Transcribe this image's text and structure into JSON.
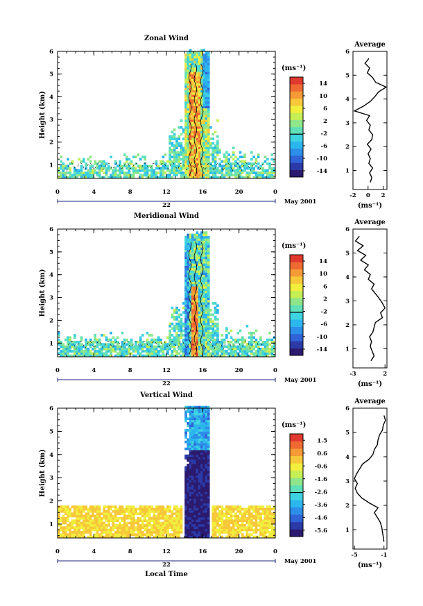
{
  "chart_data": [
    {
      "type": "heatmap",
      "title": "Zonal Wind",
      "xlabel": "",
      "ylabel": "Height (km)",
      "xticks": [
        "0",
        "4",
        "8",
        "12",
        "16",
        "20",
        "0"
      ],
      "yticks": [
        "1",
        "2",
        "3",
        "4",
        "5",
        "6"
      ],
      "xlim": [
        0,
        24
      ],
      "ylim": [
        0.4,
        6.0
      ],
      "date_label": "22",
      "month_label": "May 2001",
      "colorbar": {
        "unit": "(ms⁻¹)",
        "ticks": [
          "14",
          "10",
          "6",
          "2",
          "-2",
          "-6",
          "-10",
          "-14"
        ],
        "range": [
          -16,
          16
        ]
      },
      "profile": {
        "title": "Average",
        "xlabel": "(ms⁻¹)",
        "xticks": [
          "-2",
          "0",
          "2"
        ],
        "xlim": [
          -2,
          2.5
        ],
        "y": [
          0.5,
          0.7,
          0.9,
          1.1,
          1.3,
          1.5,
          1.7,
          1.9,
          2.1,
          2.3,
          2.5,
          2.7,
          2.9,
          3.1,
          3.3,
          3.5,
          3.7,
          3.9,
          4.1,
          4.3,
          4.5,
          4.7,
          4.9,
          5.1,
          5.3,
          5.5,
          5.7
        ],
        "x": [
          0.3,
          0.5,
          0.2,
          0.6,
          0.1,
          0.3,
          0.0,
          0.4,
          -0.1,
          0.5,
          0.6,
          0.1,
          0.3,
          -0.2,
          0.2,
          -1.8,
          -0.6,
          0.3,
          0.9,
          1.4,
          2.4,
          1.0,
          0.6,
          -0.1,
          0.2,
          -0.4,
          0.1
        ]
      }
    },
    {
      "type": "heatmap",
      "title": "Meridional Wind",
      "xlabel": "",
      "ylabel": "Height (km)",
      "xticks": [
        "0",
        "4",
        "8",
        "12",
        "16",
        "20",
        "0"
      ],
      "yticks": [
        "1",
        "2",
        "3",
        "4",
        "5",
        "6"
      ],
      "xlim": [
        0,
        24
      ],
      "ylim": [
        0.4,
        6.0
      ],
      "date_label": "22",
      "month_label": "May 2001",
      "colorbar": {
        "unit": "(ms⁻¹)",
        "ticks": [
          "14",
          "10",
          "6",
          "2",
          "-2",
          "-6",
          "-10",
          "-14"
        ],
        "range": [
          -16,
          16
        ]
      },
      "profile": {
        "title": "Average",
        "xlabel": "(ms⁻¹)",
        "xticks": [
          "-3",
          "2"
        ],
        "xlim": [
          -3,
          2.3
        ],
        "y": [
          0.5,
          0.7,
          0.9,
          1.1,
          1.3,
          1.5,
          1.7,
          1.9,
          2.1,
          2.3,
          2.5,
          2.7,
          2.9,
          3.1,
          3.3,
          3.5,
          3.7,
          3.9,
          4.1,
          4.3,
          4.5,
          4.7,
          4.9,
          5.1,
          5.3,
          5.5,
          5.7
        ],
        "x": [
          -0.2,
          0.3,
          0.0,
          -0.3,
          -0.1,
          -0.4,
          0.1,
          0.3,
          0.5,
          1.6,
          1.3,
          2.0,
          1.6,
          1.1,
          0.5,
          -0.1,
          0.3,
          -0.6,
          -0.3,
          -1.2,
          -0.6,
          -1.8,
          -1.0,
          -2.3,
          -1.4,
          -2.6,
          -2.0
        ]
      }
    },
    {
      "type": "heatmap",
      "title": "Vertical Wind",
      "xlabel": "Local Time",
      "ylabel": "Height (km)",
      "xticks": [
        "0",
        "4",
        "8",
        "12",
        "16",
        "20",
        "0"
      ],
      "yticks": [
        "1",
        "2",
        "3",
        "4",
        "5",
        "6"
      ],
      "xlim": [
        0,
        24
      ],
      "ylim": [
        0.4,
        6.0
      ],
      "date_label": "22",
      "month_label": "May 2001",
      "colorbar": {
        "unit": "(ms⁻¹)",
        "ticks": [
          "1.5",
          "0.6",
          "-0.6",
          "-1.6",
          "-2.6",
          "-3.6",
          "-4.6",
          "-5.6"
        ],
        "range": [
          -6.0,
          2.0
        ]
      },
      "profile": {
        "title": "Average",
        "xlabel": "(ms⁻¹)",
        "xticks": [
          "-5",
          "-1"
        ],
        "xlim": [
          -5.2,
          -0.6
        ],
        "y": [
          0.5,
          0.7,
          0.9,
          1.1,
          1.3,
          1.5,
          1.7,
          1.9,
          2.1,
          2.3,
          2.5,
          2.7,
          2.9,
          3.1,
          3.3,
          3.5,
          3.7,
          3.9,
          4.1,
          4.3,
          4.5,
          4.7,
          4.9,
          5.1,
          5.3,
          5.5,
          5.7
        ],
        "x": [
          -1.0,
          -1.1,
          -1.2,
          -1.3,
          -1.5,
          -1.9,
          -2.3,
          -1.8,
          -3.0,
          -4.0,
          -4.6,
          -4.9,
          -4.6,
          -5.0,
          -4.7,
          -4.3,
          -3.9,
          -3.0,
          -2.5,
          -2.3,
          -1.9,
          -1.8,
          -1.6,
          -1.2,
          -1.1,
          -0.8,
          -1.0
        ]
      }
    }
  ]
}
